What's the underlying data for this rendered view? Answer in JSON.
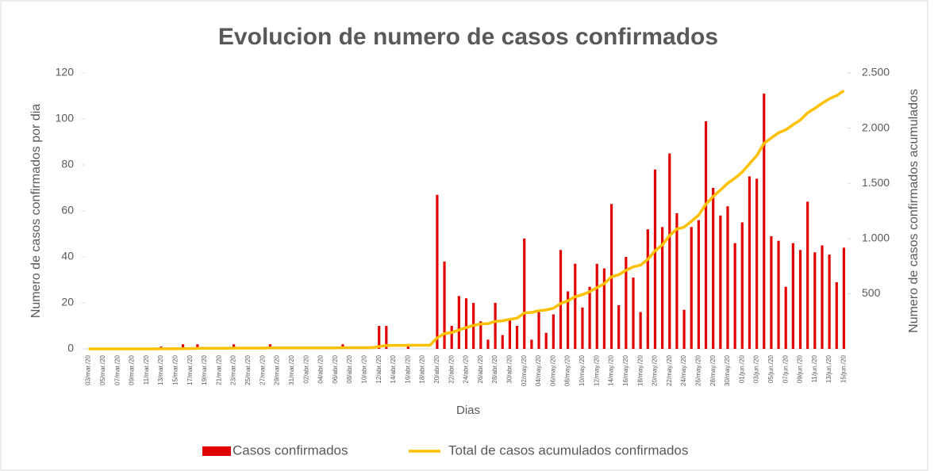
{
  "chart_data": {
    "type": "bar_line",
    "title": "Evolucion de numero de casos confirmados",
    "x_label": "Dias",
    "y_label": "Numero de casos confirmados por dia",
    "y2_label": "Numero de casos confirmados acumulados",
    "categories": [
      "03/mar./20",
      null,
      "05/mar./20",
      null,
      "07/mar./20",
      null,
      "09/mar./20",
      null,
      "11/mar./20",
      null,
      "13/mar./20",
      null,
      "15/mar./20",
      null,
      "17/mar./20",
      null,
      "19/mar./20",
      null,
      "21/mar./20",
      null,
      "23/mar./20",
      null,
      "25/mar./20",
      null,
      "27/mar./20",
      null,
      "29/mar./20",
      null,
      "31/mar./20",
      null,
      "02/abr./20",
      null,
      "04/abr./20",
      null,
      "06/abr./20",
      null,
      "08/abr./20",
      null,
      "10/abr./20",
      null,
      "12/abr./20",
      null,
      "14/abr./20",
      null,
      "16/abr./20",
      null,
      "18/abr./20",
      null,
      "20/abr./20",
      null,
      "22/abr./20",
      null,
      "24/abr./20",
      null,
      "26/abr./20",
      null,
      "28/abr./20",
      null,
      "30/abr./20",
      null,
      "02/may./20",
      null,
      "04/may./20",
      null,
      "06/may./20",
      null,
      "08/may./20",
      null,
      "10/may./20",
      null,
      "12/may./20",
      null,
      "14/may./20",
      null,
      "16/may./20",
      null,
      "18/may./20",
      null,
      "20/may./20",
      null,
      "22/may./20",
      null,
      "24/may./20",
      null,
      "26/may./20",
      null,
      "28/may./20",
      null,
      "30/may./20",
      null,
      "01/jun./20",
      null,
      "03/jun./20",
      null,
      "05/jun./20",
      null,
      "07/jun./20",
      null,
      "09/jun./20",
      null,
      "11/jun./20",
      null,
      "13/jun./20",
      null,
      "15/jun./20"
    ],
    "series": [
      {
        "name": "Casos confirmados",
        "kind": "bar",
        "color": "#e00000",
        "values": [
          0,
          0,
          0,
          0,
          0,
          0,
          0,
          0,
          0,
          0,
          1,
          0,
          0,
          2,
          0,
          2,
          0,
          0,
          0,
          0,
          2,
          0,
          0,
          0,
          0,
          2,
          0,
          0,
          0,
          0,
          0,
          0,
          0,
          0,
          0,
          2,
          0,
          0,
          0,
          0,
          10,
          10,
          0,
          0,
          2,
          0,
          0,
          0,
          67,
          38,
          10,
          23,
          22,
          20,
          12,
          4,
          20,
          6,
          13,
          10,
          48,
          4,
          16,
          7,
          15,
          43,
          25,
          37,
          18,
          27,
          37,
          35,
          63,
          19,
          40,
          31,
          16,
          52,
          78,
          53,
          85,
          59,
          17,
          53,
          56,
          99,
          70,
          58,
          62,
          46,
          55,
          75,
          74,
          111,
          49,
          47,
          27,
          46,
          43,
          64,
          42,
          45,
          41,
          29,
          44
        ]
      },
      {
        "name": "Total de casos acumulados confirmados",
        "kind": "line",
        "axis": "y2",
        "color": "#ffc000",
        "values": [
          0,
          0,
          0,
          0,
          0,
          0,
          0,
          0,
          0,
          0,
          1,
          1,
          1,
          3,
          3,
          5,
          5,
          5,
          5,
          5,
          7,
          7,
          7,
          7,
          7,
          9,
          9,
          9,
          9,
          9,
          9,
          9,
          9,
          9,
          9,
          11,
          11,
          11,
          11,
          11,
          21,
          31,
          31,
          31,
          33,
          33,
          33,
          33,
          100,
          138,
          148,
          171,
          193,
          213,
          225,
          229,
          249,
          255,
          268,
          278,
          326,
          330,
          346,
          353,
          368,
          411,
          436,
          473,
          491,
          518,
          555,
          590,
          653,
          672,
          712,
          743,
          759,
          811,
          889,
          942,
          1027,
          1086,
          1103,
          1156,
          1212,
          1311,
          1381,
          1439,
          1501,
          1547,
          1602,
          1677,
          1751,
          1862,
          1911,
          1958,
          1985,
          2031,
          2074,
          2138,
          2180,
          2225,
          2266,
          2295,
          2339
        ]
      }
    ],
    "ylim": [
      0,
      120
    ],
    "yticks": [
      0,
      20,
      40,
      60,
      80,
      100,
      120
    ],
    "y2lim": [
      0,
      2500
    ],
    "y2ticks": [
      500,
      {
        "value": 1000,
        "label": "1.000"
      },
      {
        "value": 1500,
        "label": "1.500"
      },
      {
        "value": 2000,
        "label": "2.000"
      },
      {
        "value": 2500,
        "label": "2.500"
      }
    ],
    "legend": "bottom"
  }
}
